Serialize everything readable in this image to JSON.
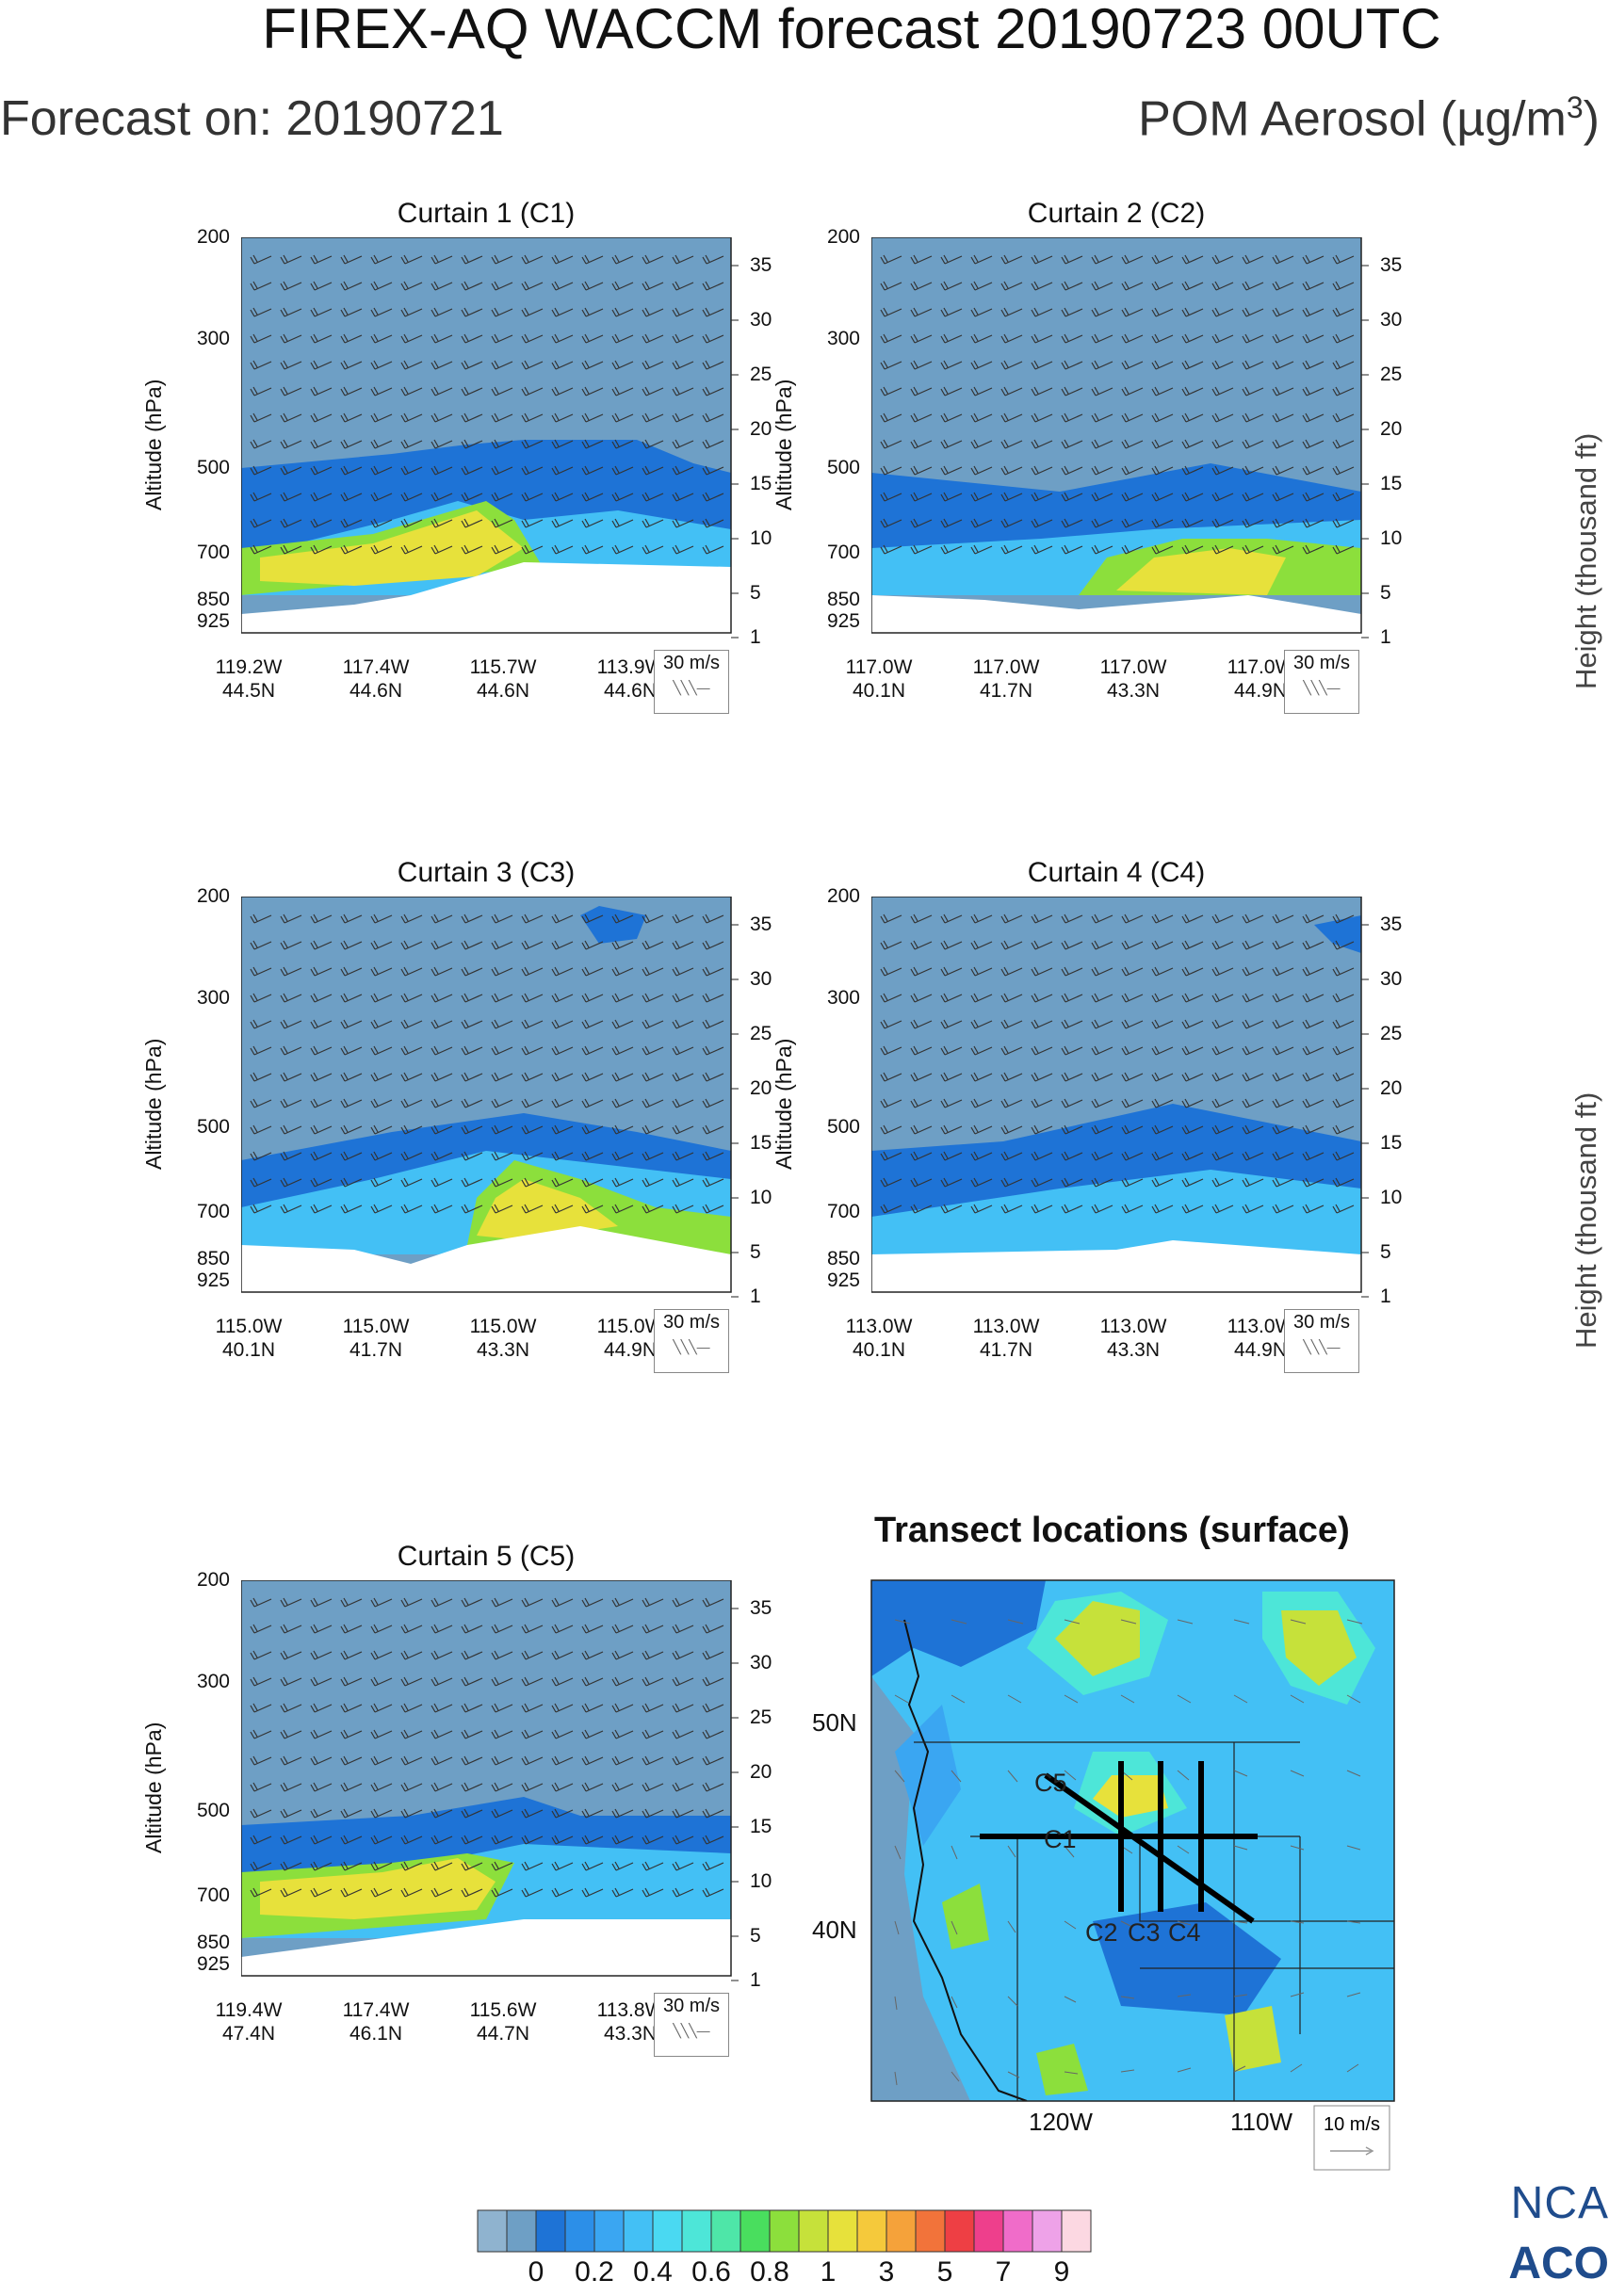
{
  "header": {
    "title": "FIREX-AQ WACCM forecast 20190723 00UTC",
    "forecast_on": "Forecast on: 20190721",
    "species": "POM Aerosol (µg/m",
    "species_sup": "3",
    "species_close": ")"
  },
  "axes": {
    "pressure_label": "Altitude (hPa)",
    "height_label": "Height (thousand ft)",
    "pressure_ticks": [
      "200",
      "300",
      "500",
      "700",
      "850",
      "925"
    ],
    "height_ticks": [
      "35",
      "30",
      "25",
      "20",
      "15",
      "10",
      "5",
      "1"
    ],
    "wind_ref": "30 m/s"
  },
  "panels": [
    {
      "title": "Curtain 1 (C1)",
      "xticks": [
        [
          "119.2W",
          "44.5N"
        ],
        [
          "117.4W",
          "44.6N"
        ],
        [
          "115.7W",
          "44.6N"
        ],
        [
          "113.9W",
          "44.6N"
        ]
      ]
    },
    {
      "title": "Curtain 2 (C2)",
      "xticks": [
        [
          "117.0W",
          "40.1N"
        ],
        [
          "117.0W",
          "41.7N"
        ],
        [
          "117.0W",
          "43.3N"
        ],
        [
          "117.0W",
          "44.9N"
        ]
      ]
    },
    {
      "title": "Curtain 3 (C3)",
      "xticks": [
        [
          "115.0W",
          "40.1N"
        ],
        [
          "115.0W",
          "41.7N"
        ],
        [
          "115.0W",
          "43.3N"
        ],
        [
          "115.0W",
          "44.9N"
        ]
      ]
    },
    {
      "title": "Curtain 4 (C4)",
      "xticks": [
        [
          "113.0W",
          "40.1N"
        ],
        [
          "113.0W",
          "41.7N"
        ],
        [
          "113.0W",
          "43.3N"
        ],
        [
          "113.0W",
          "44.9N"
        ]
      ]
    },
    {
      "title": "Curtain 5 (C5)",
      "xticks": [
        [
          "119.4W",
          "47.4N"
        ],
        [
          "117.4W",
          "46.1N"
        ],
        [
          "115.6W",
          "44.7N"
        ],
        [
          "113.8W",
          "43.3N"
        ]
      ]
    }
  ],
  "map": {
    "title": "Transect locations (surface)",
    "lat_labels": [
      "50N",
      "40N"
    ],
    "lon_labels": [
      "120W",
      "110W"
    ],
    "transect_labels": [
      "C5",
      "C1",
      "C2",
      "C3",
      "C4"
    ],
    "wind_ref": "10 m/s"
  },
  "colorbar": {
    "labels": [
      "0",
      "0.2",
      "0.4",
      "0.6",
      "0.8",
      "1",
      "3",
      "5",
      "7",
      "9"
    ],
    "colors": [
      "#8fb3cf",
      "#6e9fc5",
      "#1e73d6",
      "#2c8fe8",
      "#3aa6f2",
      "#43c0f5",
      "#4ad9f2",
      "#4de6d8",
      "#4ee6a8",
      "#49de5e",
      "#8cdf3c",
      "#c6e13a",
      "#e7e13b",
      "#f5c93b",
      "#f5a23a",
      "#f2733a",
      "#ee3f44",
      "#ee3f8c",
      "#f06cc9",
      "#eea2e8",
      "#fcd8e2"
    ]
  },
  "branding": {
    "line1": "NCA",
    "line2": "ACO"
  },
  "chart_data": [
    {
      "type": "heatmap",
      "title": "Curtain 1 (C1)",
      "ylabel": "Altitude (hPa)",
      "y2label": "Height (thousand ft)",
      "x": [
        "119.2W 44.5N",
        "117.4W 44.6N",
        "115.7W 44.6N",
        "113.9W 44.6N"
      ],
      "yticks_hPa": [
        200,
        300,
        500,
        700,
        850,
        925
      ],
      "y2ticks_kft": [
        35,
        30,
        25,
        20,
        15,
        10,
        5,
        1
      ],
      "wind_reference": "30 m/s"
    },
    {
      "type": "heatmap",
      "title": "Curtain 2 (C2)",
      "ylabel": "Altitude (hPa)",
      "y2label": "Height (thousand ft)",
      "x": [
        "117.0W 40.1N",
        "117.0W 41.7N",
        "117.0W 43.3N",
        "117.0W 44.9N"
      ],
      "yticks_hPa": [
        200,
        300,
        500,
        700,
        850,
        925
      ],
      "y2ticks_kft": [
        35,
        30,
        25,
        20,
        15,
        10,
        5,
        1
      ],
      "wind_reference": "30 m/s"
    },
    {
      "type": "heatmap",
      "title": "Curtain 3 (C3)",
      "ylabel": "Altitude (hPa)",
      "y2label": "Height (thousand ft)",
      "x": [
        "115.0W 40.1N",
        "115.0W 41.7N",
        "115.0W 43.3N",
        "115.0W 44.9N"
      ],
      "yticks_hPa": [
        200,
        300,
        500,
        700,
        850,
        925
      ],
      "y2ticks_kft": [
        35,
        30,
        25,
        20,
        15,
        10,
        5,
        1
      ],
      "wind_reference": "30 m/s"
    },
    {
      "type": "heatmap",
      "title": "Curtain 4 (C4)",
      "ylabel": "Altitude (hPa)",
      "y2label": "Height (thousand ft)",
      "x": [
        "113.0W 40.1N",
        "113.0W 41.7N",
        "113.0W 43.3N",
        "113.0W 44.9N"
      ],
      "yticks_hPa": [
        200,
        300,
        500,
        700,
        850,
        925
      ],
      "y2ticks_kft": [
        35,
        30,
        25,
        20,
        15,
        10,
        5,
        1
      ],
      "wind_reference": "30 m/s"
    },
    {
      "type": "heatmap",
      "title": "Curtain 5 (C5)",
      "ylabel": "Altitude (hPa)",
      "y2label": "Height (thousand ft)",
      "x": [
        "119.4W 47.4N",
        "117.4W 46.1N",
        "115.6W 44.7N",
        "113.8W 43.3N"
      ],
      "yticks_hPa": [
        200,
        300,
        500,
        700,
        850,
        925
      ],
      "y2ticks_kft": [
        35,
        30,
        25,
        20,
        15,
        10,
        5,
        1
      ],
      "wind_reference": "30 m/s"
    },
    {
      "type": "heatmap",
      "title": "Transect locations (surface)",
      "lat_ticks": [
        "50N",
        "40N"
      ],
      "lon_ticks": [
        "120W",
        "110W"
      ],
      "transects": [
        "C1",
        "C2",
        "C3",
        "C4",
        "C5"
      ],
      "wind_reference": "10 m/s",
      "colorbar_levels": [
        0,
        0.2,
        0.4,
        0.6,
        0.8,
        1,
        3,
        5,
        7,
        9
      ],
      "units": "µg/m3"
    }
  ]
}
